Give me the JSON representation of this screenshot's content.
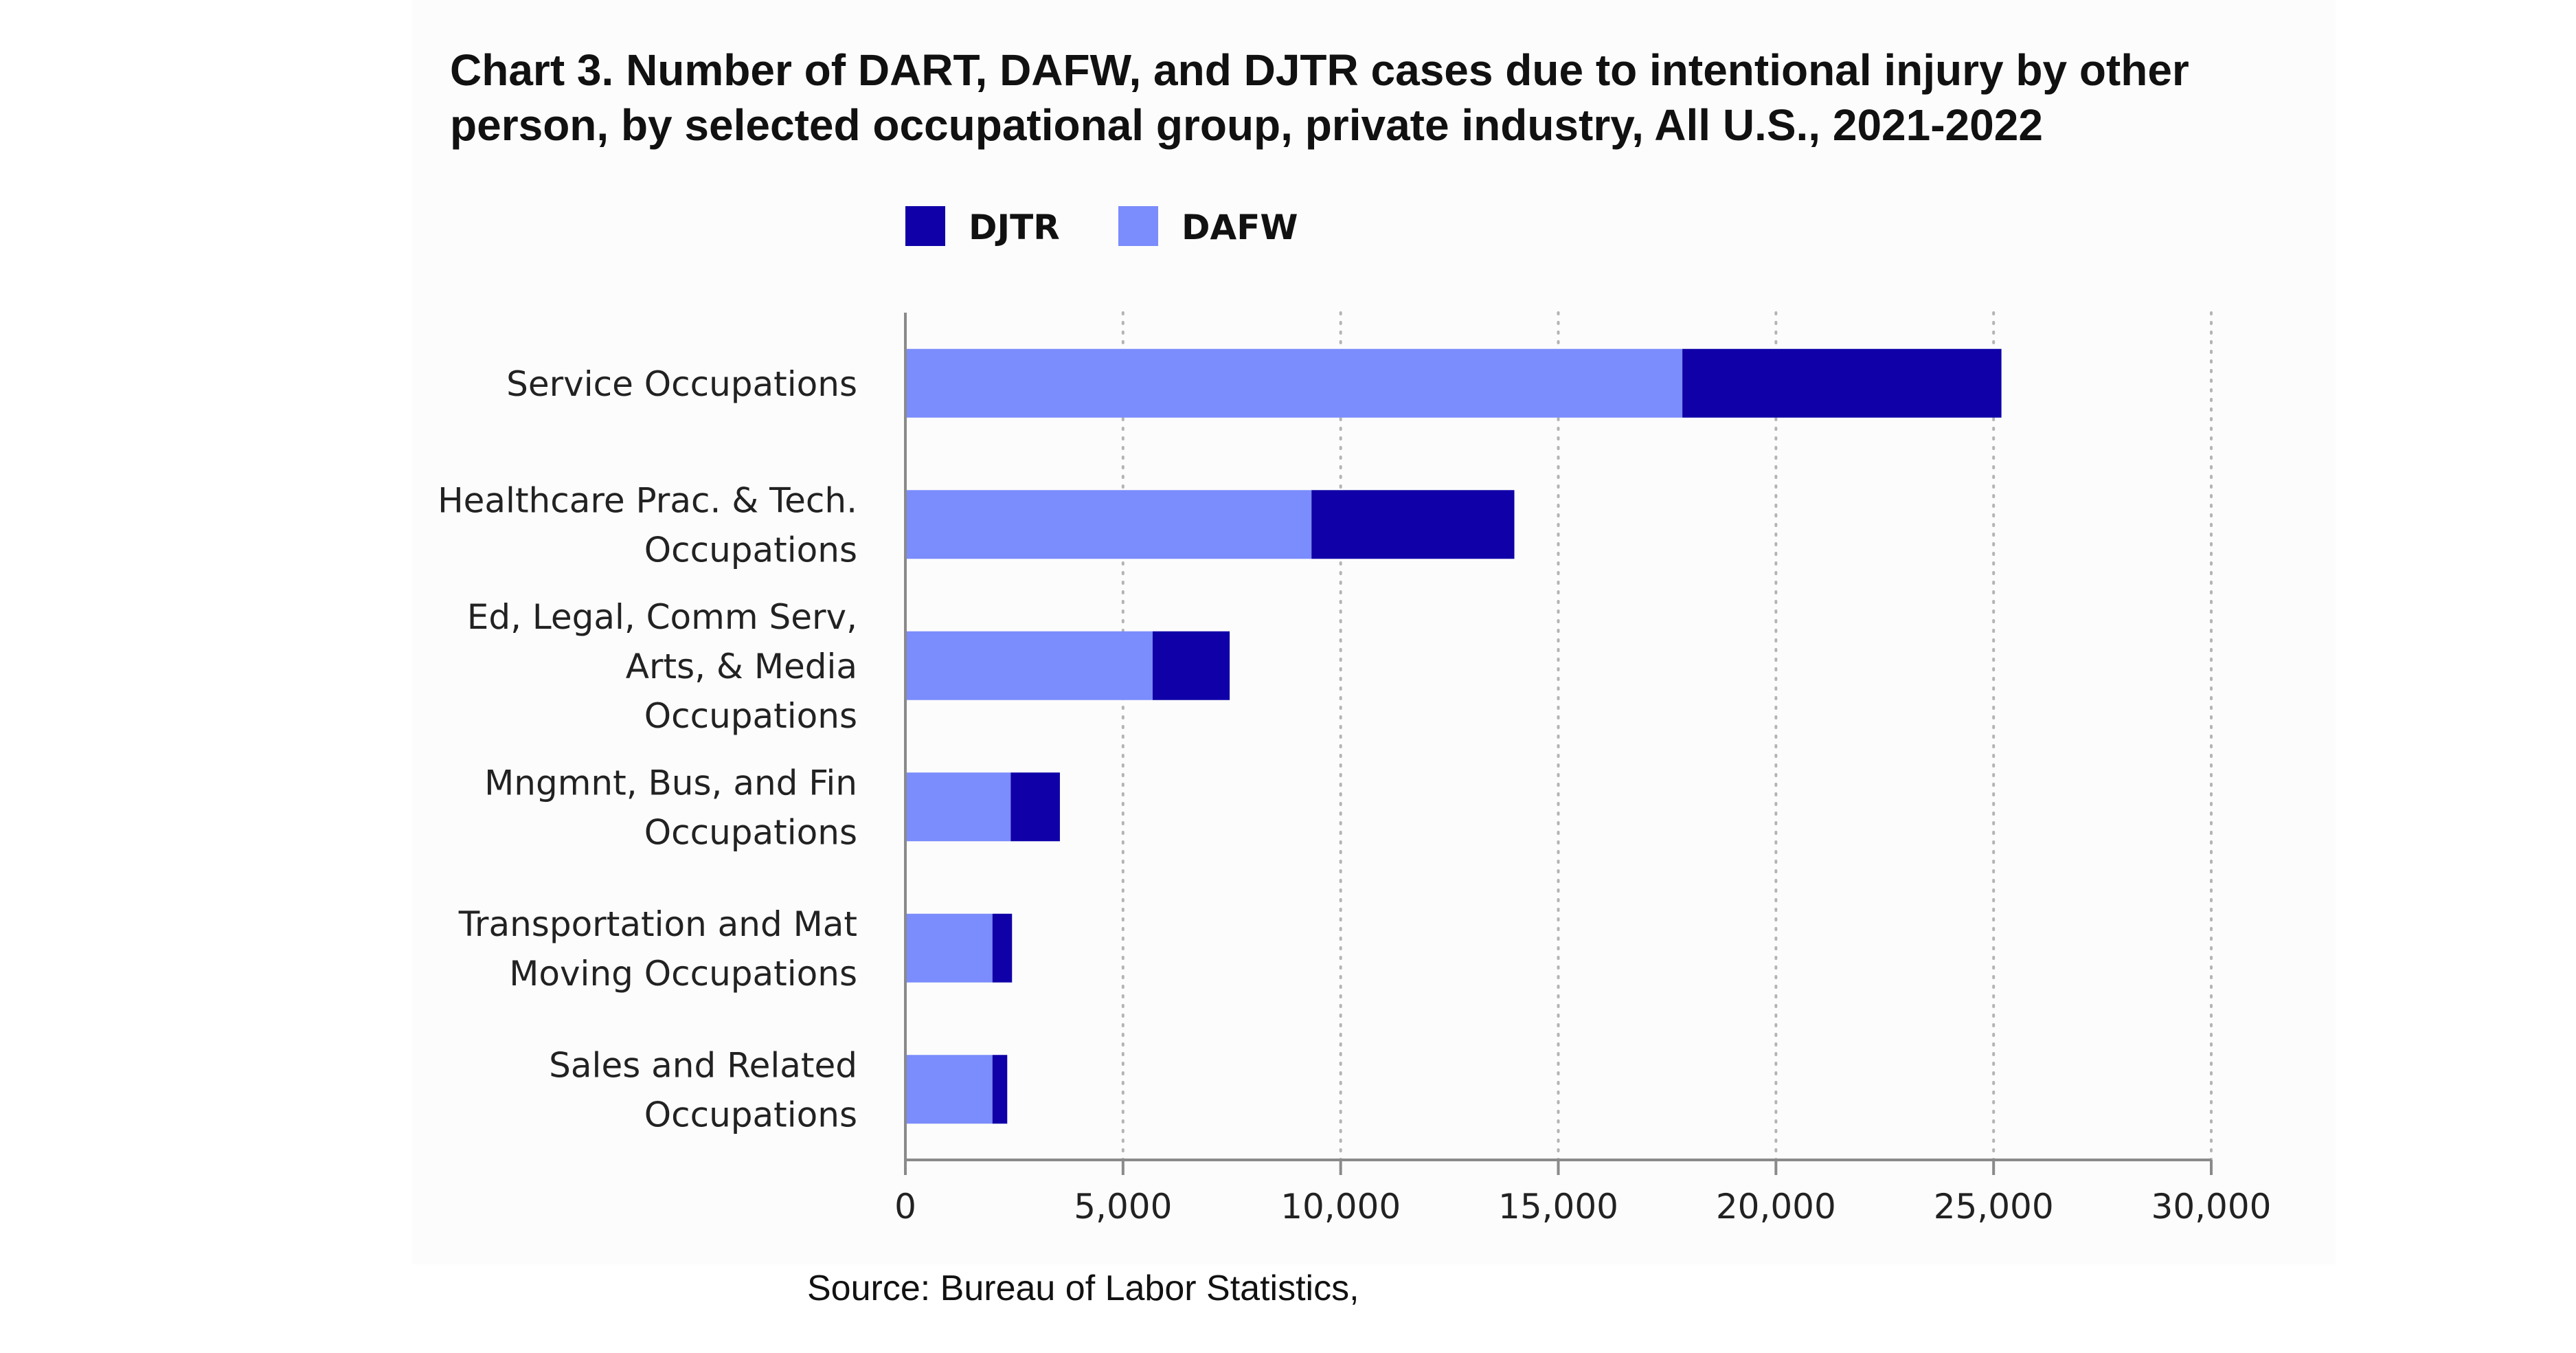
{
  "chart_data": {
    "type": "bar",
    "orientation": "horizontal",
    "stacked": true,
    "title": "Chart 3. Number of DART, DAFW, and DJTR cases due to intentional injury by other person, by selected occupational group, private industry, All U.S., 2021-2022",
    "categories": [
      "Service Occupations",
      "Healthcare Prac. & Tech. Occupations",
      "Ed, Legal, Comm Serv, Arts, & Media Occupations",
      "Mngmnt, Bus, and Fin Occupations",
      "Transportation and Mat Moving Occupations",
      "Sales and Related Occupations"
    ],
    "category_lines": [
      [
        "Service Occupations"
      ],
      [
        "Healthcare Prac. & Tech.",
        "Occupations"
      ],
      [
        "Ed, Legal, Comm Serv,",
        "Arts, & Media",
        "Occupations"
      ],
      [
        "Mngmnt, Bus, and Fin",
        "Occupations"
      ],
      [
        "Transportation and Mat",
        "Moving Occupations"
      ],
      [
        "Sales and Related",
        "Occupations"
      ]
    ],
    "series": [
      {
        "name": "DAFW",
        "color": "#7b8cfc",
        "values": [
          17850,
          9330,
          5680,
          2420,
          2000,
          2000
        ]
      },
      {
        "name": "DJTR",
        "color": "#0f00a8",
        "values": [
          7330,
          4660,
          1770,
          1130,
          450,
          340
        ]
      }
    ],
    "legend_order": [
      "DJTR",
      "DAFW"
    ],
    "legend_position": "top-center",
    "xlim": [
      0,
      30000
    ],
    "xticks": [
      0,
      5000,
      10000,
      15000,
      20000,
      25000,
      30000
    ],
    "xtick_labels": [
      "0",
      "5,000",
      "10,000",
      "15,000",
      "20,000",
      "25,000",
      "30,000"
    ],
    "grid": "vertical-dotted",
    "source": "Source: Bureau of Labor Statistics,"
  }
}
